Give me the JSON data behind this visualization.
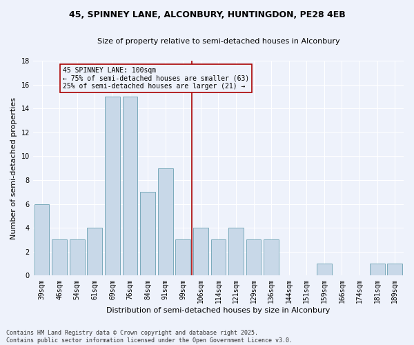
{
  "title_line1": "45, SPINNEY LANE, ALCONBURY, HUNTINGDON, PE28 4EB",
  "title_line2": "Size of property relative to semi-detached houses in Alconbury",
  "xlabel": "Distribution of semi-detached houses by size in Alconbury",
  "ylabel": "Number of semi-detached properties",
  "categories": [
    "39sqm",
    "46sqm",
    "54sqm",
    "61sqm",
    "69sqm",
    "76sqm",
    "84sqm",
    "91sqm",
    "99sqm",
    "106sqm",
    "114sqm",
    "121sqm",
    "129sqm",
    "136sqm",
    "144sqm",
    "151sqm",
    "159sqm",
    "166sqm",
    "174sqm",
    "181sqm",
    "189sqm"
  ],
  "values": [
    6,
    3,
    3,
    4,
    15,
    15,
    7,
    9,
    3,
    4,
    3,
    4,
    3,
    3,
    0,
    0,
    1,
    0,
    0,
    1,
    1
  ],
  "bar_color": "#c8d8e8",
  "bar_edge_color": "#7aaabb",
  "vline_x": 8.5,
  "vline_color": "#aa0000",
  "annotation_text": "45 SPINNEY LANE: 100sqm\n← 75% of semi-detached houses are smaller (63)\n25% of semi-detached houses are larger (21) →",
  "annotation_box_color": "#aa0000",
  "annotation_fontsize": 7,
  "bg_color": "#eef2fb",
  "grid_color": "#ffffff",
  "footer": "Contains HM Land Registry data © Crown copyright and database right 2025.\nContains public sector information licensed under the Open Government Licence v3.0.",
  "ylim": [
    0,
    18
  ],
  "yticks": [
    0,
    2,
    4,
    6,
    8,
    10,
    12,
    14,
    16,
    18
  ],
  "title_fontsize": 9,
  "subtitle_fontsize": 8,
  "xlabel_fontsize": 8,
  "ylabel_fontsize": 8,
  "tick_fontsize": 7
}
